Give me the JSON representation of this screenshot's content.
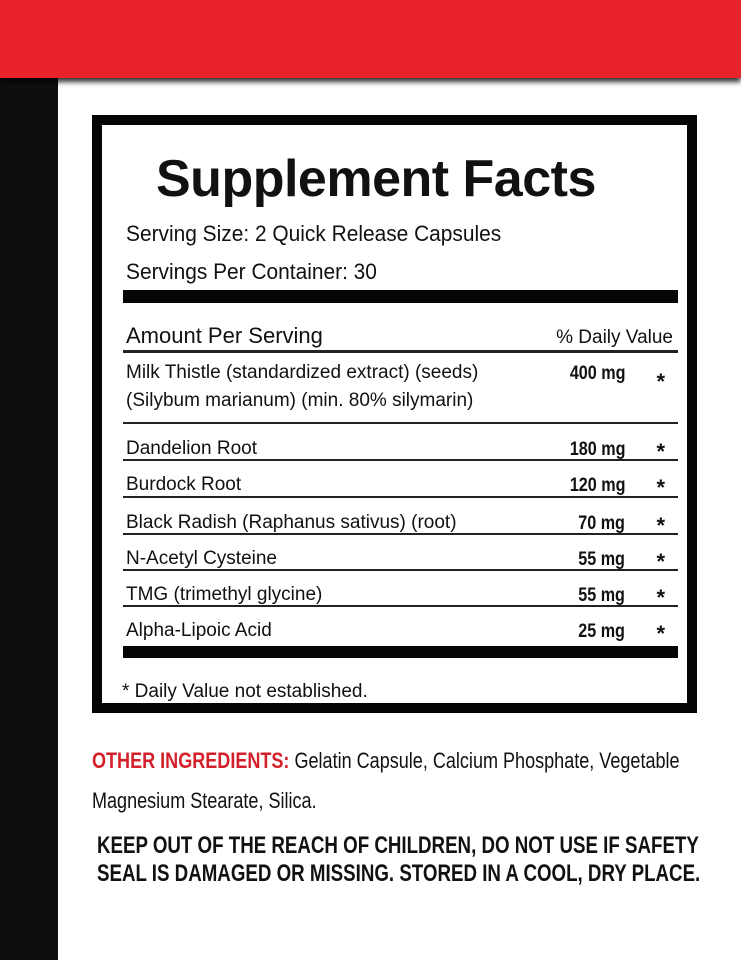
{
  "colors": {
    "band": "#e8232a",
    "accent_text": "#d4202a",
    "strip": "#0e0e0e"
  },
  "facts": {
    "title": "Supplement Facts",
    "serving_size": "Serving Size: 2 Quick Release Capsules",
    "servings_per_container": "Servings Per Container: 30",
    "amount_header": "Amount Per Serving",
    "dv_header": "% Daily Value",
    "rows": [
      {
        "name_line1": "Milk Thistle (standardized extract) (seeds)",
        "name_line2": "(Silybum marianum) (min. 80% silymarin)",
        "amount": "400 mg",
        "dv": "*"
      },
      {
        "name_line1": "Dandelion Root",
        "amount": "180 mg",
        "dv": "*"
      },
      {
        "name_line1": "Burdock Root",
        "amount": "120 mg",
        "dv": "*"
      },
      {
        "name_line1": "Black Radish (Raphanus sativus) (root)",
        "amount": "70 mg",
        "dv": "*"
      },
      {
        "name_line1": "N-Acetyl Cysteine",
        "amount": "55 mg",
        "dv": "*"
      },
      {
        "name_line1": "TMG (trimethyl glycine)",
        "amount": "55 mg",
        "dv": "*"
      },
      {
        "name_line1": "Alpha-Lipoic Acid",
        "amount": "25 mg",
        "dv": "*"
      }
    ],
    "footnote": "* Daily Value not established."
  },
  "other_ingredients": {
    "label": "OTHER INGREDIENTS:",
    "text": " Gelatin Capsule, Calcium Phosphate, Vegetable Magnesium Stearate, Silica."
  },
  "warning": {
    "line1": "KEEP OUT OF THE REACH OF CHILDREN, DO NOT USE IF SAFETY",
    "line2": "SEAL IS DAMAGED OR MISSING. STORED IN A COOL, DRY PLACE."
  }
}
